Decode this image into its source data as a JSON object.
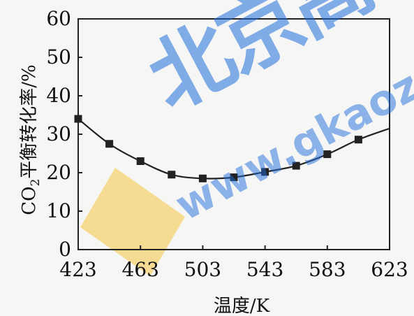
{
  "chart_data": {
    "type": "line",
    "xlabel": "温度/K",
    "ylabel_text": "CO2平衡转化率/%",
    "xlim": [
      423,
      623
    ],
    "ylim": [
      0,
      60
    ],
    "xticks": [
      "423",
      "463",
      "503",
      "543",
      "583",
      "623"
    ],
    "yticks": [
      "0",
      "10",
      "20",
      "30",
      "40",
      "50",
      "60"
    ],
    "grid": false,
    "points": [
      {
        "x": 423,
        "y": 34
      },
      {
        "x": 443,
        "y": 27.5
      },
      {
        "x": 463,
        "y": 23
      },
      {
        "x": 483,
        "y": 19.5
      },
      {
        "x": 503,
        "y": 18.5
      },
      {
        "x": 523,
        "y": 18.8
      },
      {
        "x": 543,
        "y": 20.2
      },
      {
        "x": 563,
        "y": 21.8
      },
      {
        "x": 583,
        "y": 24.8
      },
      {
        "x": 603,
        "y": 28.6
      }
    ],
    "curve_end": {
      "x": 623,
      "y": 31.5
    }
  },
  "watermark": {
    "title": "北京高考",
    "url": "www.gkaoz",
    "color": "#1e6edc",
    "accent_color": "#f5c542"
  }
}
